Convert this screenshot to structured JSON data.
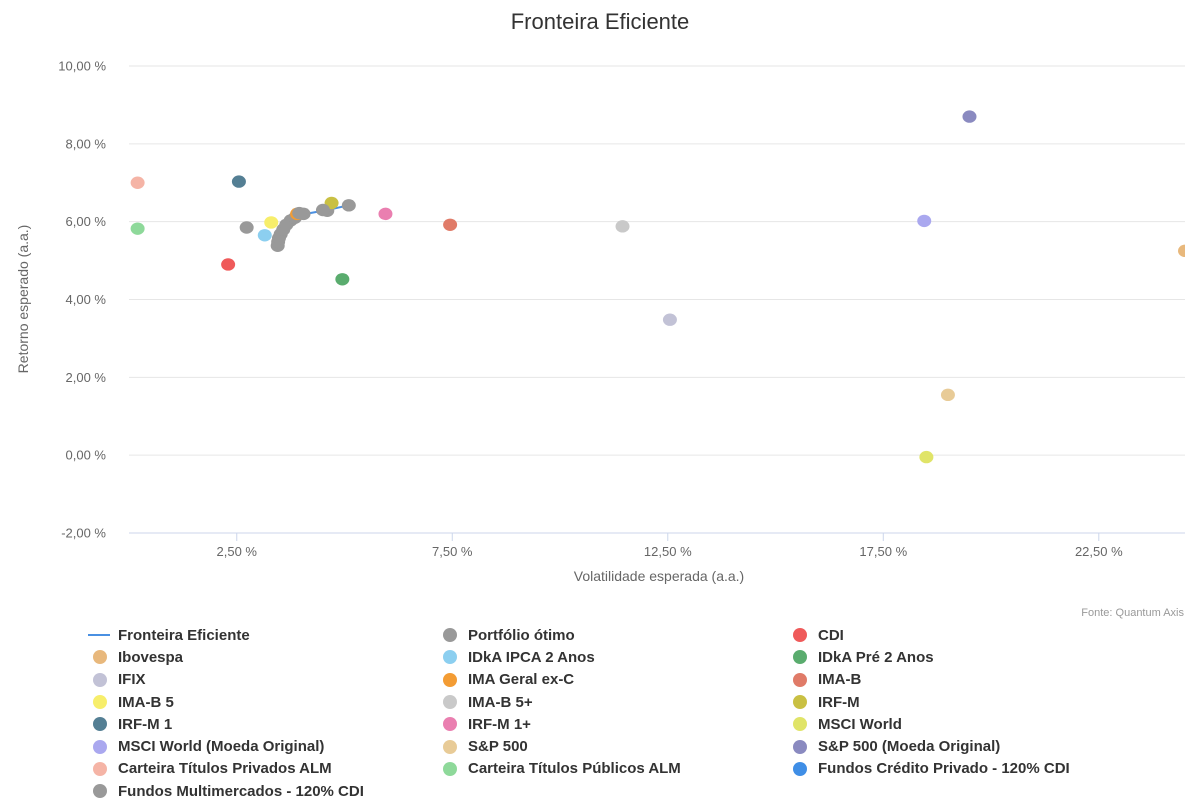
{
  "chart_data": {
    "type": "scatter",
    "title": "Fronteira Eficiente",
    "xlabel": "Volatilidade esperada (a.a.)",
    "ylabel": "Retorno esperado (a.a.)",
    "source": "Fonte: Quantum Axis",
    "xlim": [
      0.0,
      24.5
    ],
    "ylim": [
      -2.0,
      10.0
    ],
    "x_ticks": [
      {
        "value": 2.5,
        "label": "2,50 %"
      },
      {
        "value": 7.5,
        "label": "7,50 %"
      },
      {
        "value": 12.5,
        "label": "12,50 %"
      },
      {
        "value": 17.5,
        "label": "17,50 %"
      },
      {
        "value": 22.5,
        "label": "22,50 %"
      }
    ],
    "y_ticks": [
      {
        "value": 10,
        "label": "10,00 %"
      },
      {
        "value": 8,
        "label": "8,00 %"
      },
      {
        "value": 6,
        "label": "6,00 %"
      },
      {
        "value": 4,
        "label": "4,00 %"
      },
      {
        "value": 2,
        "label": "2,00 %"
      },
      {
        "value": 0,
        "label": "0,00 %"
      },
      {
        "value": -2,
        "label": "-2,00 %"
      }
    ],
    "grid": true,
    "legend_position": "bottom",
    "series": [
      {
        "name": "Fronteira Eficiente",
        "kind": "line",
        "color": "#4a90e2",
        "points": [
          [
            3.45,
            5.38
          ],
          [
            3.46,
            5.5
          ],
          [
            3.5,
            5.65
          ],
          [
            3.58,
            5.82
          ],
          [
            3.7,
            5.98
          ],
          [
            3.85,
            6.1
          ],
          [
            4.1,
            6.2
          ],
          [
            4.6,
            6.3
          ],
          [
            5.1,
            6.42
          ]
        ]
      },
      {
        "name": "Portfólio ótimo",
        "kind": "scatter",
        "color": "#999999",
        "points": [
          [
            3.45,
            5.38
          ],
          [
            3.46,
            5.48
          ],
          [
            3.48,
            5.58
          ],
          [
            3.52,
            5.68
          ],
          [
            3.58,
            5.8
          ],
          [
            3.65,
            5.92
          ],
          [
            3.75,
            6.03
          ],
          [
            3.85,
            6.1
          ],
          [
            4.05,
            6.2
          ],
          [
            4.6,
            6.28
          ],
          [
            5.1,
            6.42
          ],
          [
            2.73,
            5.85
          ]
        ]
      },
      {
        "name": "CDI",
        "color": "#ef5a5a",
        "points": [
          [
            2.3,
            4.9
          ]
        ]
      },
      {
        "name": "Ibovespa",
        "color": "#e8b87c",
        "points": [
          [
            24.5,
            5.25
          ]
        ]
      },
      {
        "name": "IDkA IPCA 2 Anos",
        "color": "#8ccff0",
        "points": [
          [
            3.15,
            5.65
          ]
        ]
      },
      {
        "name": "IDkA Pré 2 Anos",
        "color": "#5aac6e",
        "points": [
          [
            4.95,
            4.52
          ]
        ]
      },
      {
        "name": "IFIX",
        "color": "#c2c2d6",
        "points": [
          [
            12.55,
            3.48
          ]
        ]
      },
      {
        "name": "IMA Geral ex-C",
        "color": "#f39c34",
        "points": [
          [
            3.9,
            6.2
          ]
        ]
      },
      {
        "name": "IMA-B",
        "color": "#e07b68",
        "points": [
          [
            7.45,
            5.92
          ]
        ]
      },
      {
        "name": "IMA-B 5",
        "color": "#f7ee6b",
        "points": [
          [
            3.3,
            5.98
          ]
        ]
      },
      {
        "name": "IMA-B 5+",
        "color": "#c9c9c9",
        "points": [
          [
            11.45,
            5.88
          ]
        ]
      },
      {
        "name": "IRF-M",
        "color": "#c9c043",
        "points": [
          [
            4.7,
            6.48
          ]
        ]
      },
      {
        "name": "IRF-M 1",
        "color": "#547f94",
        "points": [
          [
            2.55,
            7.03
          ]
        ]
      },
      {
        "name": "IRF-M 1+",
        "color": "#ea7fb0",
        "points": [
          [
            5.95,
            6.2
          ]
        ]
      },
      {
        "name": "MSCI World",
        "color": "#e0e468",
        "points": [
          [
            18.5,
            -0.05
          ]
        ]
      },
      {
        "name": "MSCI World (Moeda Original)",
        "color": "#aaa8ef",
        "points": [
          [
            18.45,
            6.02
          ]
        ]
      },
      {
        "name": "S&P 500",
        "color": "#e8cb97",
        "points": [
          [
            19.0,
            1.55
          ]
        ]
      },
      {
        "name": "S&P 500 (Moeda Original)",
        "color": "#8a8ac0",
        "points": [
          [
            19.5,
            8.7
          ]
        ]
      },
      {
        "name": "Carteira Títulos Privados ALM",
        "color": "#f5b4a6",
        "points": [
          [
            0.2,
            7.0
          ]
        ]
      },
      {
        "name": "Carteira Títulos Públicos ALM",
        "color": "#8ed99a",
        "points": [
          [
            0.2,
            5.82
          ]
        ]
      },
      {
        "name": "Fundos Crédito Privado - 120% CDI",
        "color": "#3f8ee6",
        "points": []
      },
      {
        "name": "Fundos Multimercados - 120% CDI",
        "color": "#999999",
        "points": [
          [
            3.95,
            6.22
          ],
          [
            4.5,
            6.3
          ]
        ]
      }
    ]
  }
}
